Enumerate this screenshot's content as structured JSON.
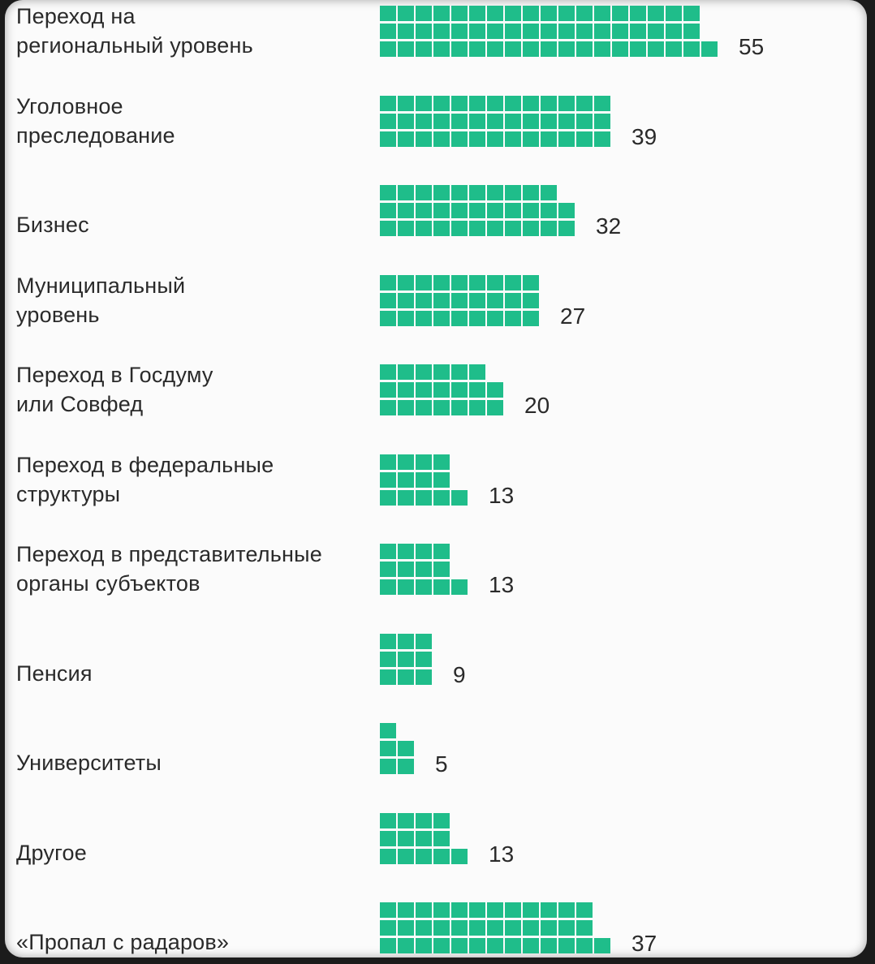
{
  "colors": {
    "bar": "#1fbd8a",
    "text": "#2a2a2a",
    "background": "#fbfbfb"
  },
  "chart_data": {
    "type": "bar",
    "orientation": "horizontal",
    "encoding": "unit-squares",
    "units_per_row_of_bar": 3,
    "categories": [
      "Переход на\nрегиональный уровень",
      "Уголовное\nпреследование",
      "Бизнес",
      "Муниципальный\nуровень",
      "Переход в Госдуму\nили Совфед",
      "Переход в федеральные\nструктуры",
      "Переход в представительные\nорганы субъектов",
      "Пенсия",
      "Университеты",
      "Другое",
      "«Пропал с радаров»"
    ],
    "values": [
      55,
      39,
      32,
      27,
      20,
      13,
      13,
      9,
      5,
      13,
      37
    ],
    "value_labels": [
      "55",
      "39",
      "32",
      "27",
      "20",
      "13",
      "13",
      "9",
      "5",
      "13",
      "37"
    ],
    "title": "",
    "xlabel": "",
    "ylabel": ""
  }
}
